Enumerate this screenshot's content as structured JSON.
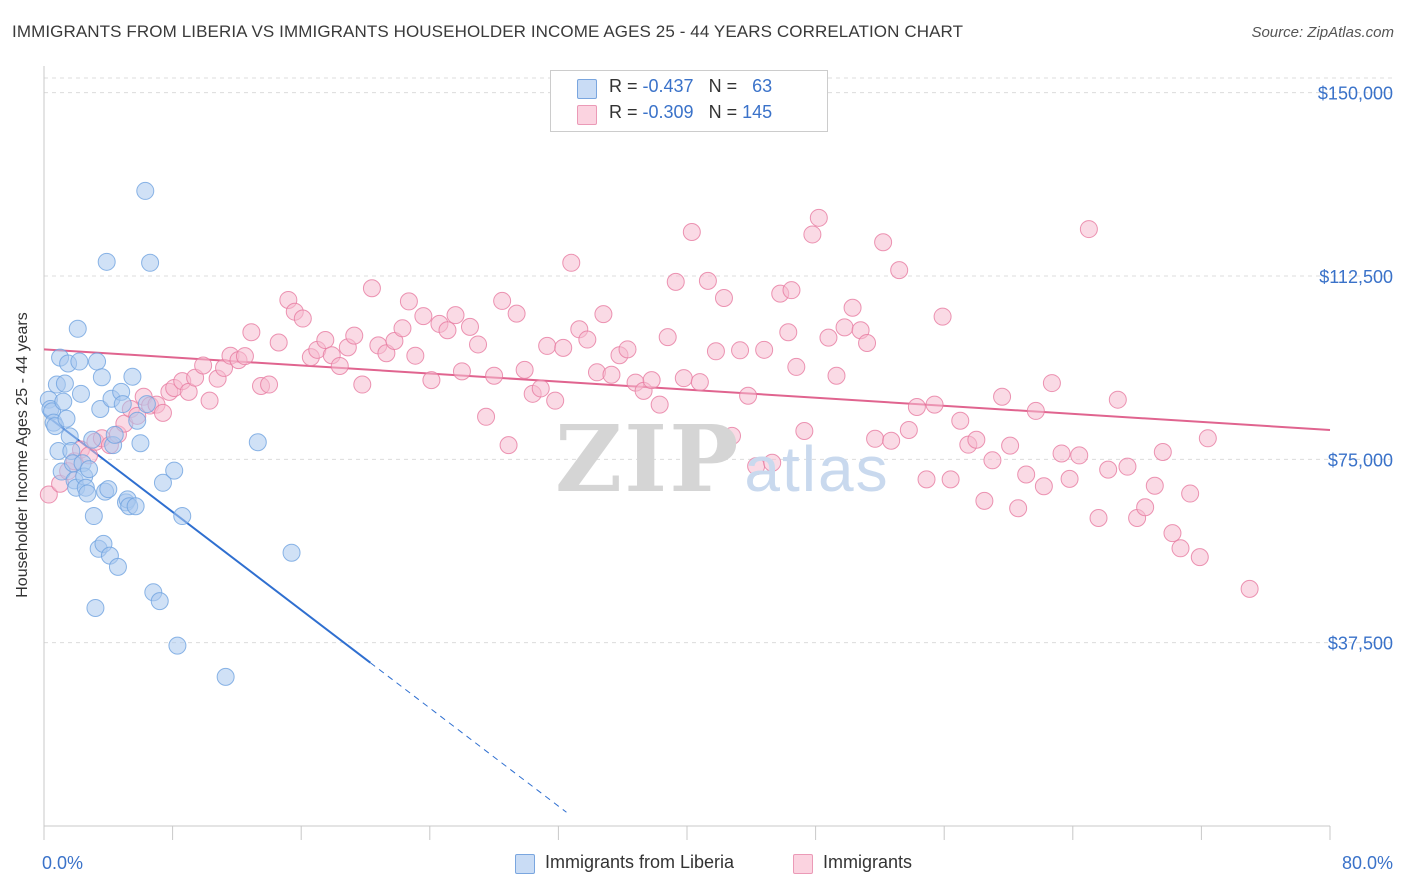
{
  "title": "IMMIGRANTS FROM LIBERIA VS IMMIGRANTS HOUSEHOLDER INCOME AGES 25 - 44 YEARS CORRELATION CHART",
  "source": "Source: ZipAtlas.com",
  "watermark": {
    "zip": "ZIP",
    "atlas": "atlas"
  },
  "legend": {
    "rows": [
      {
        "r_label": "R = ",
        "r_value": "-0.437",
        "n_label": "N = ",
        "n_value": "63",
        "color": "#a9c8ef"
      },
      {
        "r_label": "R = ",
        "r_value": "-0.309",
        "n_label": "N = ",
        "n_value": "145",
        "color": "#f6bccf"
      }
    ]
  },
  "bottom_legend": [
    {
      "label": "Immigrants from Liberia",
      "color": "#a9c8ef"
    },
    {
      "label": "Immigrants",
      "color": "#f6bccf"
    }
  ],
  "chart_data": {
    "type": "scatter",
    "title": "IMMIGRANTS FROM LIBERIA VS IMMIGRANTS HOUSEHOLDER INCOME AGES 25 - 44 YEARS CORRELATION CHART",
    "xlabel": "",
    "ylabel": "Householder Income Ages 25 - 44 years",
    "xlim": [
      0,
      80
    ],
    "ylim": [
      0,
      153000
    ],
    "x_tick_labels": [
      "0.0%",
      "80.0%"
    ],
    "y_ticks": [
      37500,
      75000,
      112500,
      150000
    ],
    "y_tick_labels": [
      "$37,500",
      "$75,000",
      "$112,500",
      "$150,000"
    ],
    "grid": true,
    "series": [
      {
        "name": "Immigrants from Liberia",
        "color": "#6fa3e0",
        "fill": "#a9c8ef",
        "r": -0.437,
        "n": 63,
        "trend": {
          "x0": 0,
          "y0": 84300,
          "x1": 20.3,
          "y1": 33400,
          "dashed_to_x": 32.5
        },
        "points": [
          [
            0.3,
            87200
          ],
          [
            0.4,
            85300
          ],
          [
            0.5,
            84800
          ],
          [
            0.6,
            82500
          ],
          [
            0.7,
            81800
          ],
          [
            0.8,
            90300
          ],
          [
            0.9,
            76700
          ],
          [
            1.0,
            95800
          ],
          [
            1.1,
            72500
          ],
          [
            1.2,
            86800
          ],
          [
            1.3,
            90500
          ],
          [
            1.4,
            83300
          ],
          [
            1.5,
            94600
          ],
          [
            1.6,
            79700
          ],
          [
            1.7,
            76700
          ],
          [
            1.8,
            74200
          ],
          [
            1.9,
            70700
          ],
          [
            2.0,
            69200
          ],
          [
            2.1,
            101700
          ],
          [
            2.2,
            95000
          ],
          [
            2.3,
            88400
          ],
          [
            2.4,
            74200
          ],
          [
            2.5,
            71500
          ],
          [
            2.6,
            69200
          ],
          [
            2.7,
            68000
          ],
          [
            2.8,
            73000
          ],
          [
            3.0,
            79000
          ],
          [
            3.1,
            63400
          ],
          [
            3.2,
            44600
          ],
          [
            3.3,
            95000
          ],
          [
            3.4,
            56700
          ],
          [
            3.5,
            85300
          ],
          [
            3.6,
            91800
          ],
          [
            3.7,
            57700
          ],
          [
            3.8,
            68400
          ],
          [
            3.9,
            115400
          ],
          [
            4.0,
            68900
          ],
          [
            4.1,
            55300
          ],
          [
            4.2,
            87400
          ],
          [
            4.3,
            77900
          ],
          [
            4.4,
            80000
          ],
          [
            4.6,
            53000
          ],
          [
            4.8,
            88800
          ],
          [
            4.9,
            86300
          ],
          [
            5.1,
            66200
          ],
          [
            5.2,
            66800
          ],
          [
            5.3,
            65400
          ],
          [
            5.5,
            91900
          ],
          [
            5.7,
            65400
          ],
          [
            5.8,
            82900
          ],
          [
            6.0,
            78300
          ],
          [
            6.3,
            129900
          ],
          [
            6.4,
            86300
          ],
          [
            6.6,
            115200
          ],
          [
            6.8,
            47800
          ],
          [
            7.2,
            46000
          ],
          [
            7.4,
            70200
          ],
          [
            8.1,
            72700
          ],
          [
            8.3,
            36900
          ],
          [
            8.6,
            63400
          ],
          [
            11.3,
            30500
          ],
          [
            13.3,
            78500
          ],
          [
            15.4,
            55900
          ]
        ]
      },
      {
        "name": "Immigrants",
        "color": "#e77aa0",
        "fill": "#f6bccf",
        "r": -0.309,
        "n": 145,
        "trend": {
          "x0": 0,
          "y0": 97500,
          "x1": 80,
          "y1": 81000
        },
        "points": [
          [
            0.3,
            67800
          ],
          [
            1.0,
            70000
          ],
          [
            1.5,
            72600
          ],
          [
            1.9,
            74600
          ],
          [
            2.3,
            77000
          ],
          [
            2.8,
            75800
          ],
          [
            3.2,
            78600
          ],
          [
            3.6,
            79300
          ],
          [
            4.1,
            77900
          ],
          [
            4.6,
            80100
          ],
          [
            5.0,
            82300
          ],
          [
            5.4,
            85300
          ],
          [
            5.8,
            83900
          ],
          [
            6.2,
            87800
          ],
          [
            6.6,
            86000
          ],
          [
            7.0,
            86200
          ],
          [
            7.4,
            84500
          ],
          [
            7.8,
            88800
          ],
          [
            8.1,
            89600
          ],
          [
            8.6,
            91000
          ],
          [
            9.0,
            88800
          ],
          [
            9.4,
            91700
          ],
          [
            9.9,
            94200
          ],
          [
            10.3,
            87000
          ],
          [
            10.8,
            91500
          ],
          [
            11.2,
            93700
          ],
          [
            11.6,
            96200
          ],
          [
            12.1,
            95300
          ],
          [
            12.5,
            96100
          ],
          [
            12.9,
            101000
          ],
          [
            13.5,
            90000
          ],
          [
            14.0,
            90300
          ],
          [
            14.6,
            98900
          ],
          [
            15.2,
            107600
          ],
          [
            15.6,
            105200
          ],
          [
            16.1,
            103800
          ],
          [
            16.6,
            95900
          ],
          [
            17.0,
            97400
          ],
          [
            17.5,
            99400
          ],
          [
            17.9,
            96300
          ],
          [
            18.4,
            94100
          ],
          [
            18.9,
            97900
          ],
          [
            19.3,
            100300
          ],
          [
            19.8,
            90300
          ],
          [
            20.4,
            110000
          ],
          [
            20.8,
            98300
          ],
          [
            21.3,
            96700
          ],
          [
            21.8,
            99200
          ],
          [
            22.3,
            101800
          ],
          [
            22.7,
            107300
          ],
          [
            23.1,
            96200
          ],
          [
            23.6,
            104300
          ],
          [
            24.1,
            91200
          ],
          [
            24.6,
            102700
          ],
          [
            25.1,
            101400
          ],
          [
            25.6,
            104500
          ],
          [
            26.0,
            93000
          ],
          [
            26.5,
            102100
          ],
          [
            27.0,
            98500
          ],
          [
            27.5,
            83700
          ],
          [
            28.0,
            92100
          ],
          [
            28.5,
            107400
          ],
          [
            28.9,
            77900
          ],
          [
            29.4,
            104800
          ],
          [
            29.9,
            93300
          ],
          [
            30.4,
            88400
          ],
          [
            30.9,
            89500
          ],
          [
            31.3,
            98200
          ],
          [
            31.8,
            87000
          ],
          [
            32.3,
            97800
          ],
          [
            32.8,
            115200
          ],
          [
            33.3,
            101600
          ],
          [
            33.8,
            99500
          ],
          [
            34.4,
            92800
          ],
          [
            34.8,
            104700
          ],
          [
            35.3,
            92300
          ],
          [
            35.8,
            96300
          ],
          [
            36.3,
            97500
          ],
          [
            36.8,
            90700
          ],
          [
            37.3,
            89000
          ],
          [
            37.8,
            91200
          ],
          [
            38.3,
            86200
          ],
          [
            38.8,
            100000
          ],
          [
            39.3,
            111300
          ],
          [
            39.8,
            91600
          ],
          [
            40.3,
            121500
          ],
          [
            40.8,
            90800
          ],
          [
            41.3,
            111500
          ],
          [
            41.8,
            97100
          ],
          [
            42.3,
            108000
          ],
          [
            42.8,
            79800
          ],
          [
            43.3,
            97300
          ],
          [
            43.8,
            88000
          ],
          [
            44.3,
            73600
          ],
          [
            44.8,
            97400
          ],
          [
            45.3,
            74300
          ],
          [
            45.8,
            108900
          ],
          [
            46.3,
            101000
          ],
          [
            46.8,
            93900
          ],
          [
            47.3,
            80800
          ],
          [
            47.8,
            121000
          ],
          [
            48.2,
            124400
          ],
          [
            48.8,
            99900
          ],
          [
            49.3,
            92100
          ],
          [
            49.8,
            102000
          ],
          [
            50.3,
            106000
          ],
          [
            50.8,
            101400
          ],
          [
            51.2,
            98800
          ],
          [
            51.7,
            79200
          ],
          [
            52.2,
            119400
          ],
          [
            52.7,
            78800
          ],
          [
            53.2,
            113700
          ],
          [
            53.8,
            81000
          ],
          [
            54.3,
            85700
          ],
          [
            54.9,
            70900
          ],
          [
            55.4,
            86200
          ],
          [
            55.9,
            104200
          ],
          [
            56.4,
            70900
          ],
          [
            57.0,
            82900
          ],
          [
            57.5,
            78000
          ],
          [
            58.0,
            79000
          ],
          [
            58.5,
            66500
          ],
          [
            59.0,
            74800
          ],
          [
            59.6,
            87800
          ],
          [
            60.1,
            77800
          ],
          [
            60.6,
            65000
          ],
          [
            61.1,
            71900
          ],
          [
            61.7,
            84900
          ],
          [
            62.2,
            69500
          ],
          [
            62.7,
            90600
          ],
          [
            63.3,
            76200
          ],
          [
            63.8,
            71000
          ],
          [
            64.4,
            75800
          ],
          [
            65.0,
            122100
          ],
          [
            65.6,
            63000
          ],
          [
            66.2,
            72900
          ],
          [
            66.8,
            87200
          ],
          [
            67.4,
            73500
          ],
          [
            68.0,
            63000
          ],
          [
            68.5,
            65200
          ],
          [
            69.1,
            69600
          ],
          [
            69.6,
            76500
          ],
          [
            70.2,
            59900
          ],
          [
            70.7,
            56800
          ],
          [
            71.3,
            68000
          ],
          [
            71.9,
            55000
          ],
          [
            72.4,
            79300
          ],
          [
            75.0,
            48500
          ],
          [
            46.5,
            109600
          ]
        ]
      }
    ]
  }
}
